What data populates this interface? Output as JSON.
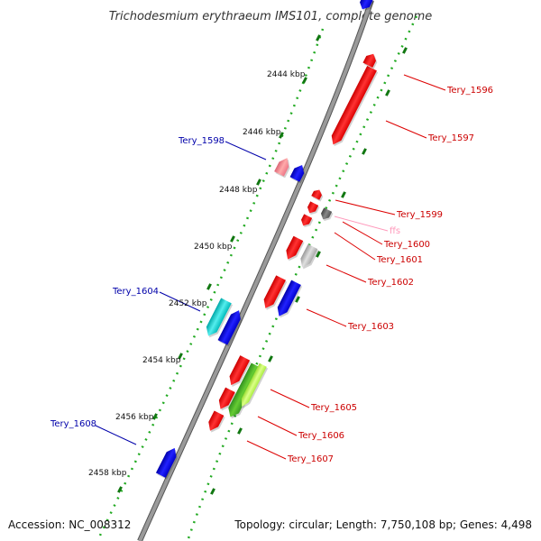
{
  "title": "Trichodesmium erythraeum IMS101, complete genome",
  "footer": {
    "accession": "Accession: NC_008312",
    "summary": "Topology: circular; Length: 7,750,108 bp; Genes: 4,498"
  },
  "positions": [
    {
      "label": "2444 kbp"
    },
    {
      "label": "2446 kbp"
    },
    {
      "label": "2448 kbp"
    },
    {
      "label": "2450 kbp"
    },
    {
      "label": "2452 kbp"
    },
    {
      "label": "2454 kbp"
    },
    {
      "label": "2456 kbp"
    },
    {
      "label": "2458 kbp"
    }
  ],
  "genes_right": [
    {
      "name": "Tery_1596"
    },
    {
      "name": "Tery_1597"
    },
    {
      "name": "Tery_1599"
    },
    {
      "name": "ffs"
    },
    {
      "name": "Tery_1600"
    },
    {
      "name": "Tery_1601"
    },
    {
      "name": "Tery_1602"
    },
    {
      "name": "Tery_1603"
    },
    {
      "name": "Tery_1605"
    },
    {
      "name": "Tery_1606"
    },
    {
      "name": "Tery_1607"
    }
  ],
  "genes_left": [
    {
      "name": "Tery_1598"
    },
    {
      "name": "Tery_1604"
    },
    {
      "name": "Tery_1608"
    }
  ],
  "colors": {
    "backbone": "#8a8a8a",
    "forward_strand_gene": "#ff0000",
    "reverse_strand_gene": "#0000ff",
    "label_forward": "#cc0000",
    "label_reverse": "#0000aa",
    "rna_gene": "#ffaacc",
    "gc_dots": "#22aa22",
    "gc_ticks": "#116611"
  }
}
